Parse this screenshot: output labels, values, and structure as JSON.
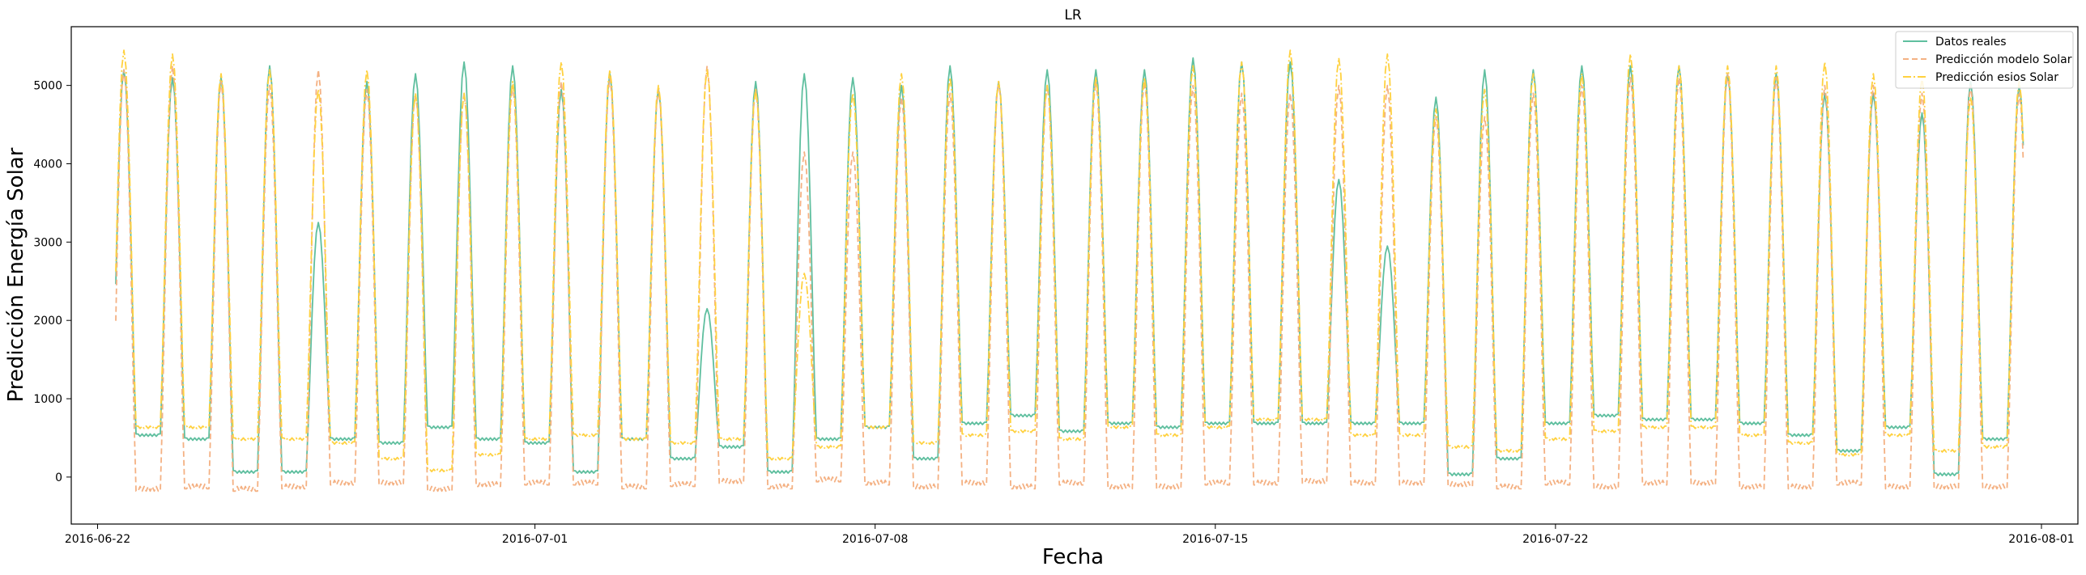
{
  "chart_data": {
    "type": "line",
    "title": "LR",
    "xlabel": "Fecha",
    "ylabel": "Predicción Energía Solar",
    "xlim": [
      "2016-06-21T11:00",
      "2016-08-01T18:00"
    ],
    "ylim": [
      -600,
      5750
    ],
    "x_ticks": [
      {
        "date": "2016-06-22",
        "label": "2016-06-22"
      },
      {
        "date": "2016-07-01",
        "label": "2016-07-01"
      },
      {
        "date": "2016-07-08",
        "label": "2016-07-08"
      },
      {
        "date": "2016-07-15",
        "label": "2016-07-15"
      },
      {
        "date": "2016-07-22",
        "label": "2016-07-22"
      },
      {
        "date": "2016-08-01",
        "label": "2016-08-01"
      }
    ],
    "y_ticks": [
      0,
      1000,
      2000,
      3000,
      4000,
      5000
    ],
    "grid": false,
    "legend_position": "top-right",
    "start_date": "2016-06-22",
    "end_date": "2016-07-31",
    "x_resolution": "hourly",
    "series": [
      {
        "name": "Datos reales",
        "color": "#5fbf9f",
        "style": "solid",
        "night_level": [
          600,
          550,
          500,
          80,
          80,
          500,
          450,
          650,
          500,
          450,
          80,
          500,
          250,
          400,
          80,
          500,
          650,
          250,
          700,
          800,
          600,
          700,
          650,
          700,
          700,
          700,
          700,
          700,
          50,
          250,
          700,
          800,
          750,
          750,
          700,
          550,
          350,
          650,
          50,
          500,
          520
        ],
        "daily_peak": [
          5200,
          5100,
          5100,
          5250,
          3250,
          5050,
          5150,
          5300,
          5250,
          4950,
          5150,
          4950,
          2150,
          5050,
          5150,
          5100,
          5000,
          5250,
          5050,
          5200,
          5200,
          5200,
          5350,
          5300,
          5300,
          3800,
          2950,
          4850,
          5200,
          5200,
          5250,
          5250,
          5250,
          5150,
          5150,
          4900,
          4900,
          4650,
          5050,
          5000
        ]
      },
      {
        "name": "Predicción modelo Solar",
        "color": "#f4b183",
        "style": "dashed",
        "night_level": [
          -200,
          -180,
          -150,
          -180,
          -150,
          -100,
          -100,
          -180,
          -120,
          -100,
          -100,
          -150,
          -120,
          -80,
          -150,
          -60,
          -100,
          -150,
          -100,
          -150,
          -100,
          -150,
          -150,
          -100,
          -100,
          -80,
          -100,
          -100,
          -120,
          -150,
          -100,
          -150,
          -100,
          -100,
          -150,
          -150,
          -100,
          -150,
          -150,
          -150,
          -150
        ],
        "daily_peak": [
          5200,
          5250,
          5050,
          5000,
          5200,
          4950,
          4900,
          4900,
          5000,
          5050,
          5100,
          4950,
          5250,
          4950,
          4150,
          4150,
          4850,
          4900,
          5050,
          5000,
          5050,
          5050,
          5000,
          4900,
          4900,
          5000,
          5000,
          4600,
          4600,
          4900,
          5000,
          5100,
          5100,
          5150,
          5100,
          5000,
          5000,
          4900,
          5000,
          4900
        ]
      },
      {
        "name": "Predicción esios Solar",
        "color": "#ffd13f",
        "style": "dashdot",
        "night_level": [
          700,
          650,
          650,
          500,
          500,
          450,
          250,
          100,
          300,
          500,
          550,
          500,
          450,
          500,
          250,
          400,
          650,
          450,
          550,
          600,
          500,
          650,
          550,
          650,
          750,
          750,
          550,
          550,
          400,
          350,
          500,
          600,
          650,
          650,
          550,
          450,
          300,
          550,
          350,
          400,
          500
        ],
        "daily_peak": [
          5450,
          5400,
          5150,
          5200,
          4950,
          5200,
          4900,
          4900,
          5050,
          5300,
          5200,
          5000,
          5200,
          4950,
          2600,
          4900,
          5150,
          5100,
          5050,
          5000,
          5100,
          5100,
          5250,
          5300,
          5450,
          5350,
          5400,
          4700,
          4950,
          5150,
          5150,
          5400,
          5250,
          5250,
          5250,
          5300,
          5150,
          5100,
          4850,
          5050
        ]
      }
    ]
  }
}
